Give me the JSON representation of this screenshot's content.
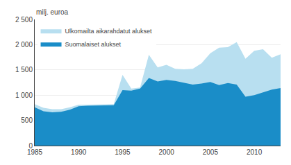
{
  "chart_data": {
    "type": "area",
    "x": [
      1985,
      1986,
      1987,
      1988,
      1989,
      1990,
      1991,
      1992,
      1993,
      1994,
      1995,
      1996,
      1997,
      1998,
      1999,
      2000,
      2001,
      2002,
      2003,
      2004,
      2005,
      2006,
      2007,
      2008,
      2009,
      2010,
      2011,
      2012,
      2013
    ],
    "series": [
      {
        "name": "Ulkomailta aikarahdatut alukset",
        "color": "#b8dff0",
        "values": [
          820,
          750,
          720,
          720,
          760,
          810,
          810,
          810,
          810,
          820,
          1400,
          1130,
          1150,
          1800,
          1550,
          1600,
          1520,
          1510,
          1520,
          1630,
          1830,
          1940,
          1950,
          2050,
          1720,
          1880,
          1910,
          1740,
          1810
        ]
      },
      {
        "name": "Suomalaiset alukset",
        "color": "#1a8dc8",
        "values": [
          760,
          680,
          660,
          670,
          710,
          780,
          790,
          790,
          790,
          800,
          1100,
          1090,
          1130,
          1340,
          1270,
          1300,
          1280,
          1250,
          1210,
          1230,
          1260,
          1200,
          1240,
          1210,
          970,
          1000,
          1060,
          1110,
          1140
        ]
      }
    ],
    "ylabel": "milj. euroa",
    "xlim": [
      1985,
      2013
    ],
    "xticks": [
      1985,
      1990,
      1995,
      2000,
      2005,
      2010
    ],
    "ylim": [
      0,
      2500
    ],
    "yticks": [
      0,
      500,
      {
        "value": 1000,
        "label": "1 000"
      },
      {
        "value": 1500,
        "label": "1 500"
      },
      {
        "value": 2000,
        "label": "2 000"
      },
      {
        "value": 2500,
        "label": "2 500"
      }
    ],
    "grid": true,
    "legend": "upper left",
    "stacked": false
  }
}
